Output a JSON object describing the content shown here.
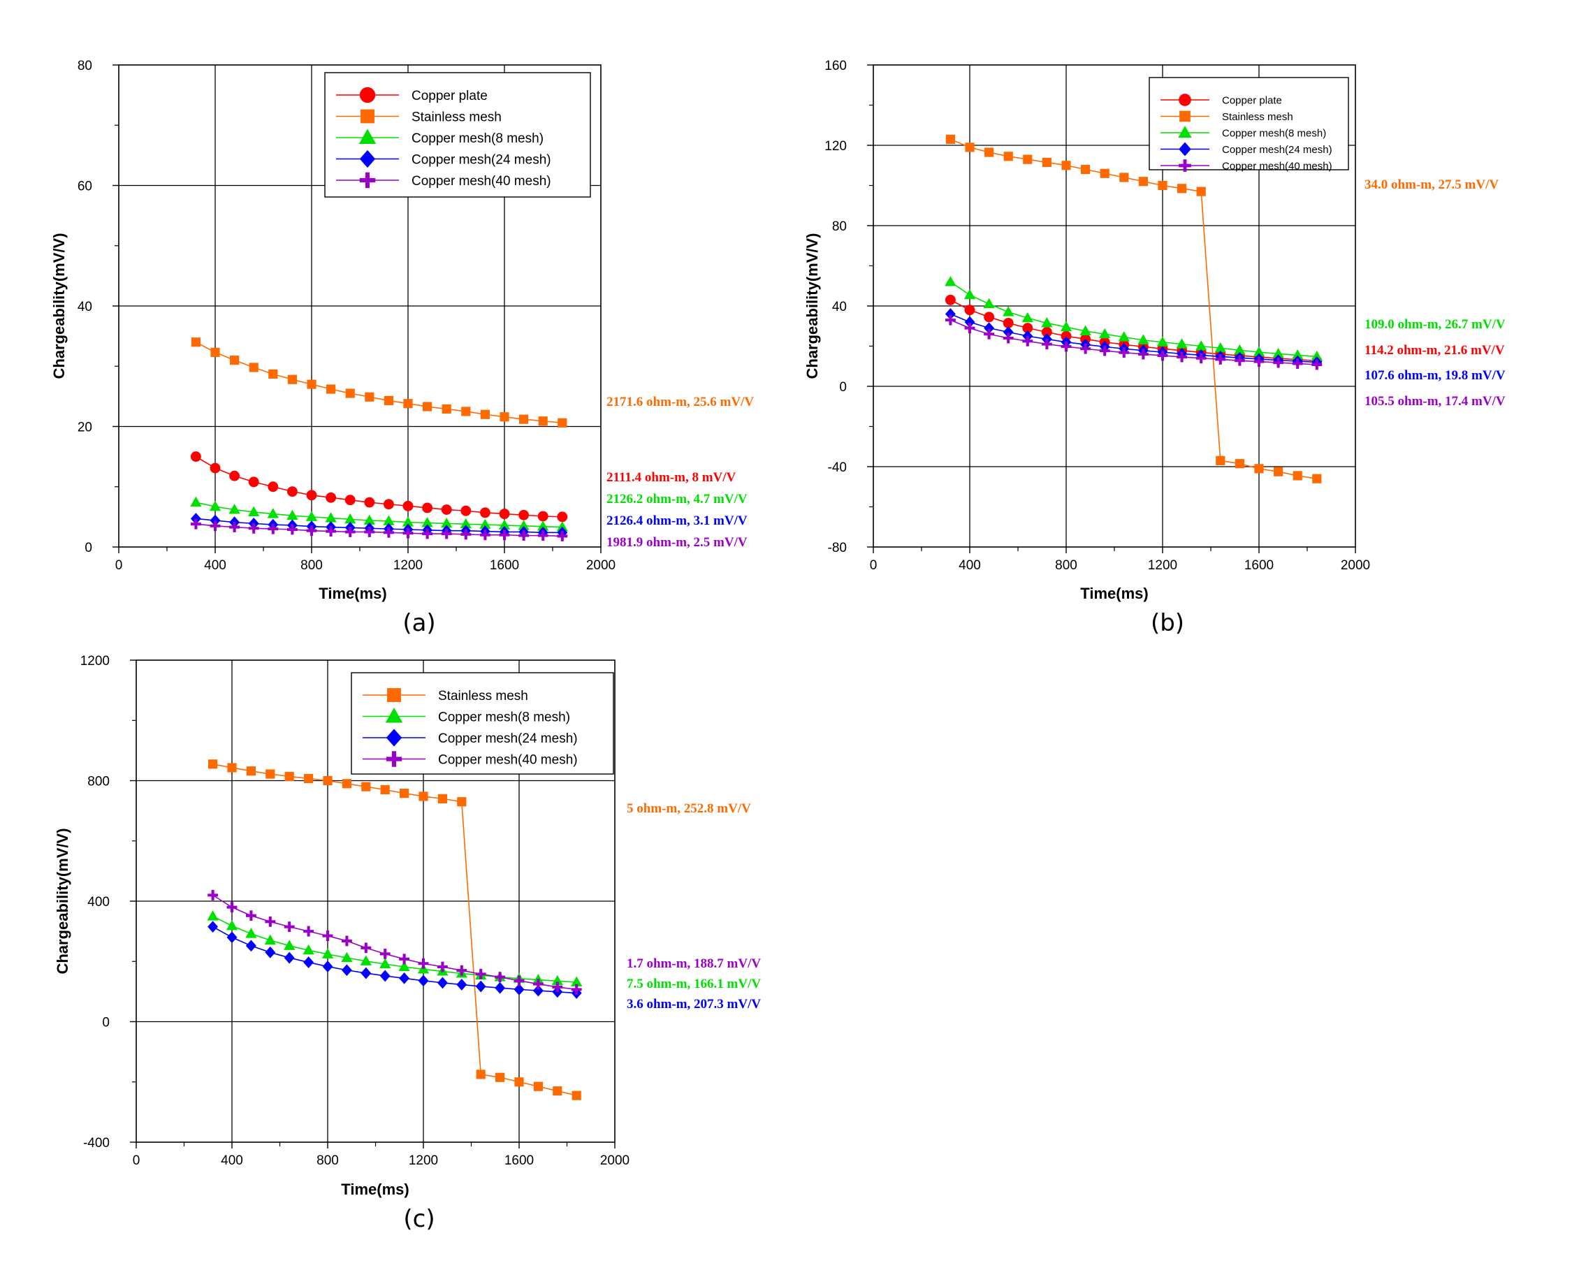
{
  "colors": {
    "copper_plate": "#ff0000",
    "stainless_mesh": "#ff6a00",
    "copper_mesh_8": "#00e000",
    "copper_mesh_24": "#0000ff",
    "copper_mesh_40": "#9b00c8"
  },
  "chart_data": [
    {
      "type": "line",
      "panel_label": "(a)",
      "xlabel": "Time(ms)",
      "ylabel": "Chargeability(mV/V)",
      "xlim": [
        0,
        2000
      ],
      "ylim": [
        0,
        80
      ],
      "xticks": [
        0,
        400,
        800,
        1200,
        1600,
        2000
      ],
      "yticks": [
        0,
        20,
        40,
        60,
        80
      ],
      "grid": true,
      "legend_position": "top-right",
      "x": [
        320,
        400,
        480,
        560,
        640,
        720,
        800,
        880,
        960,
        1040,
        1120,
        1200,
        1280,
        1360,
        1440,
        1520,
        1600,
        1680,
        1760,
        1840
      ],
      "series": [
        {
          "key": "copper_plate",
          "name": "Copper plate",
          "marker": "circle",
          "values": [
            15.0,
            13.1,
            11.8,
            10.8,
            10.0,
            9.2,
            8.6,
            8.2,
            7.8,
            7.4,
            7.1,
            6.8,
            6.5,
            6.2,
            6.0,
            5.7,
            5.5,
            5.3,
            5.1,
            5.0
          ],
          "annotation": "2111.4 ohm-m, 8 mV/V"
        },
        {
          "key": "stainless_mesh",
          "name": "Stainless mesh",
          "marker": "square",
          "values": [
            34.0,
            32.3,
            31.0,
            29.8,
            28.7,
            27.8,
            27.0,
            26.2,
            25.5,
            24.9,
            24.3,
            23.8,
            23.3,
            22.9,
            22.5,
            22.0,
            21.6,
            21.2,
            20.9,
            20.6
          ],
          "annotation": "2171.6 ohm-m, 25.6 mV/V"
        },
        {
          "key": "copper_mesh_8",
          "name": "Copper mesh(8 mesh)",
          "marker": "triangle",
          "values": [
            7.4,
            6.7,
            6.2,
            5.8,
            5.5,
            5.2,
            5.0,
            4.8,
            4.6,
            4.4,
            4.3,
            4.1,
            4.0,
            3.9,
            3.8,
            3.7,
            3.6,
            3.5,
            3.4,
            3.3
          ],
          "annotation": "2126.2 ohm-m, 4.7 mV/V"
        },
        {
          "key": "copper_mesh_24",
          "name": "Copper mesh(24 mesh)",
          "marker": "diamond",
          "values": [
            4.7,
            4.4,
            4.1,
            3.9,
            3.7,
            3.6,
            3.4,
            3.3,
            3.2,
            3.1,
            3.0,
            2.9,
            2.8,
            2.7,
            2.7,
            2.6,
            2.5,
            2.5,
            2.4,
            2.4
          ],
          "annotation": "2126.4 ohm-m, 3.1 mV/V"
        },
        {
          "key": "copper_mesh_40",
          "name": "Copper mesh(40 mesh)",
          "marker": "plus",
          "values": [
            3.8,
            3.5,
            3.3,
            3.1,
            3.0,
            2.9,
            2.7,
            2.6,
            2.5,
            2.5,
            2.4,
            2.3,
            2.2,
            2.2,
            2.1,
            2.0,
            2.0,
            1.9,
            1.9,
            1.8
          ],
          "annotation": "1981.9 ohm-m, 2.5 mV/V"
        }
      ]
    },
    {
      "type": "line",
      "panel_label": "(b)",
      "xlabel": "Time(ms)",
      "ylabel": "Chargeability(mV/V)",
      "xlim": [
        0,
        2000
      ],
      "ylim": [
        -80,
        160
      ],
      "xticks": [
        0,
        400,
        800,
        1200,
        1600,
        2000
      ],
      "yticks": [
        -80,
        -40,
        0,
        40,
        80,
        120,
        160
      ],
      "grid": true,
      "legend_position": "top-right",
      "x": [
        320,
        400,
        480,
        560,
        640,
        720,
        800,
        880,
        960,
        1040,
        1120,
        1200,
        1280,
        1360,
        1440,
        1520,
        1600,
        1680,
        1760,
        1840
      ],
      "series": [
        {
          "key": "copper_plate",
          "name": "Copper plate",
          "marker": "circle",
          "values": [
            43.0,
            38.0,
            34.5,
            31.5,
            29.0,
            27.0,
            25.0,
            23.5,
            22.0,
            20.8,
            19.7,
            18.7,
            17.8,
            16.9,
            16.0,
            15.3,
            14.6,
            13.9,
            13.3,
            12.7
          ],
          "annotation": "114.2 ohm-m, 21.6 mV/V"
        },
        {
          "key": "stainless_mesh",
          "name": "Stainless mesh",
          "marker": "square",
          "values": [
            123.0,
            119.0,
            116.5,
            114.5,
            113.0,
            111.5,
            110.0,
            108.0,
            106.0,
            104.0,
            102.0,
            100.0,
            98.5,
            97.0,
            -37.0,
            -38.5,
            -41.0,
            -42.5,
            -44.5,
            -46.0
          ],
          "annotation": "34.0 ohm-m, 27.5 mV/V"
        },
        {
          "key": "copper_mesh_8",
          "name": "Copper mesh(8 mesh)",
          "marker": "triangle",
          "values": [
            52.0,
            45.5,
            41.0,
            37.0,
            34.0,
            31.5,
            29.5,
            27.5,
            26.0,
            24.5,
            23.0,
            22.0,
            21.0,
            20.0,
            19.0,
            18.0,
            17.0,
            16.2,
            15.5,
            14.8
          ],
          "annotation": "109.0 ohm-m, 26.7 mV/V"
        },
        {
          "key": "copper_mesh_24",
          "name": "Copper mesh(24 mesh)",
          "marker": "diamond",
          "values": [
            36.0,
            32.0,
            29.0,
            27.0,
            25.0,
            23.5,
            22.0,
            20.8,
            19.7,
            18.7,
            17.8,
            17.0,
            16.2,
            15.5,
            14.8,
            14.2,
            13.6,
            13.0,
            12.5,
            12.0
          ],
          "annotation": "107.6 ohm-m, 19.8 mV/V"
        },
        {
          "key": "copper_mesh_40",
          "name": "Copper mesh(40 mesh)",
          "marker": "plus",
          "values": [
            33.0,
            29.0,
            26.0,
            24.0,
            22.5,
            21.0,
            19.8,
            18.7,
            17.7,
            16.8,
            16.0,
            15.3,
            14.6,
            14.0,
            13.4,
            12.8,
            12.3,
            11.8,
            11.3,
            10.8
          ],
          "annotation": "105.5 ohm-m, 17.4 mV/V"
        }
      ]
    },
    {
      "type": "line",
      "panel_label": "(c)",
      "xlabel": "Time(ms)",
      "ylabel": "Chargeability(mV/V)",
      "xlim": [
        0,
        2000
      ],
      "ylim": [
        -400,
        1200
      ],
      "xticks": [
        0,
        400,
        800,
        1200,
        1600,
        2000
      ],
      "yticks": [
        -400,
        0,
        400,
        800,
        1200
      ],
      "grid": true,
      "legend_position": "top-right",
      "x": [
        320,
        400,
        480,
        560,
        640,
        720,
        800,
        880,
        960,
        1040,
        1120,
        1200,
        1280,
        1360,
        1440,
        1520,
        1600,
        1680,
        1760,
        1840
      ],
      "series": [
        {
          "key": "stainless_mesh",
          "name": "Stainless mesh",
          "marker": "square",
          "values": [
            855,
            843,
            832,
            822,
            814,
            807,
            800,
            790,
            780,
            770,
            758,
            748,
            740,
            730,
            -175,
            -185,
            -200,
            -215,
            -230,
            -245
          ],
          "annotation": "5 ohm-m,  252.8 mV/V"
        },
        {
          "key": "copper_mesh_8",
          "name": "Copper mesh(8 mesh)",
          "marker": "triangle",
          "values": [
            350,
            318,
            292,
            270,
            252,
            237,
            224,
            212,
            201,
            191,
            182,
            174,
            167,
            160,
            154,
            148,
            143,
            139,
            135,
            131
          ],
          "annotation": "7.5 ohm-m, 166.1 mV/V"
        },
        {
          "key": "copper_mesh_24",
          "name": "Copper mesh(24 mesh)",
          "marker": "diamond",
          "values": [
            315,
            280,
            252,
            230,
            212,
            197,
            183,
            171,
            161,
            152,
            144,
            136,
            129,
            123,
            117,
            112,
            107,
            103,
            99,
            95
          ],
          "annotation": "3.6 ohm-m, 207.3 mV/V"
        },
        {
          "key": "copper_mesh_40",
          "name": "Copper mesh(40 mesh)",
          "marker": "plus",
          "values": [
            420,
            380,
            352,
            332,
            315,
            300,
            285,
            268,
            245,
            225,
            208,
            193,
            182,
            170,
            158,
            148,
            136,
            125,
            115,
            107
          ],
          "annotation": "1.7 ohm-m, 188.7 mV/V"
        }
      ]
    }
  ]
}
